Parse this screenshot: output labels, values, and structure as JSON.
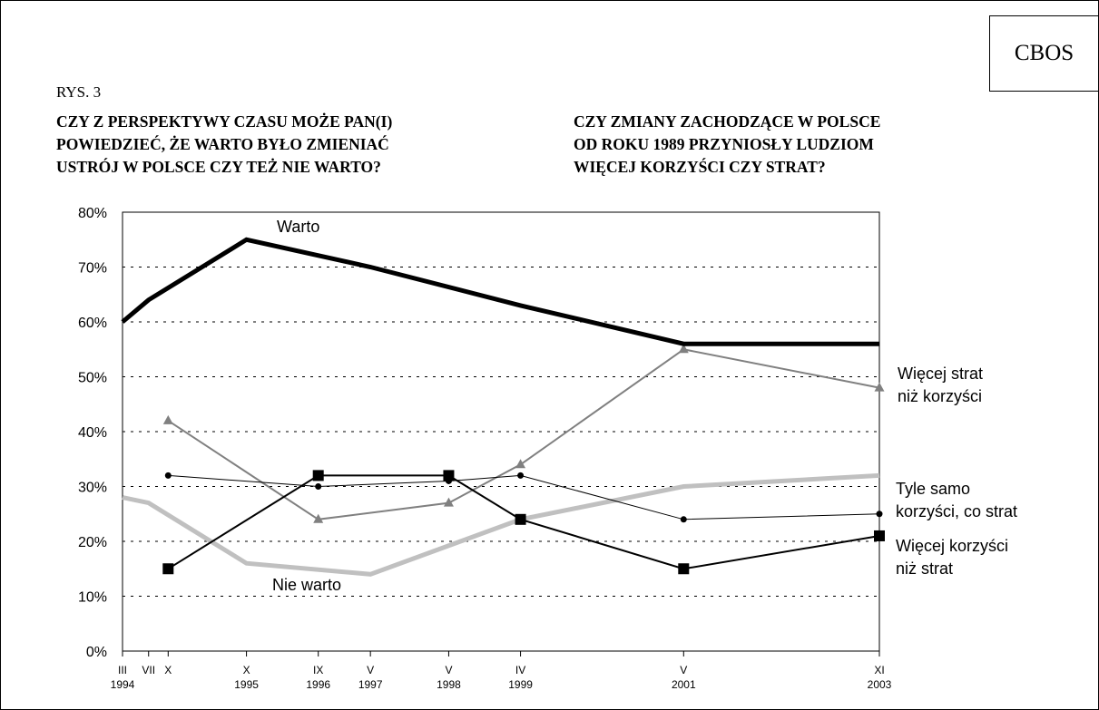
{
  "source": "CBOS",
  "figure_label": "RYS. 3",
  "question_left": "CZY Z PERSPEKTYWY CZASU MOŻE PAN(I)\nPOWIEDZIEĆ, ŻE WARTO BYŁO ZMIENIAĆ\nUSTRÓJ W POLSCE CZY TEŻ NIE WARTO?",
  "question_right": "CZY ZMIANY ZACHODZĄCE W POLSCE\nOD ROKU 1989 PRZYNIOSŁY LUDZIOM\nWIĘCEJ KORZYŚCI CZY STRAT?",
  "colors": {
    "warto": "#000000",
    "nie_warto": "#c0c0c0",
    "wiecej_strat": "#808080",
    "tyle_samo": "#000000",
    "wiecej_korzysci": "#000000"
  },
  "chart_data": {
    "type": "line",
    "ylim": [
      0,
      80
    ],
    "y_ticks": [
      "0%",
      "10%",
      "20%",
      "30%",
      "40%",
      "50%",
      "60%",
      "70%",
      "80%"
    ],
    "y_tick_values": [
      0,
      10,
      20,
      30,
      40,
      50,
      60,
      70,
      80
    ],
    "grid": "horizontal dotted",
    "xlim": [
      1994.167,
      2003.833
    ],
    "x_ticks": [
      {
        "x": 1994.167,
        "month": "III",
        "year": "1994"
      },
      {
        "x": 1994.5,
        "month": "VII",
        "year": ""
      },
      {
        "x": 1994.75,
        "month": "X",
        "year": ""
      },
      {
        "x": 1995.75,
        "month": "X",
        "year": "1995"
      },
      {
        "x": 1996.667,
        "month": "IX",
        "year": "1996"
      },
      {
        "x": 1997.333,
        "month": "V",
        "year": "1997"
      },
      {
        "x": 1998.333,
        "month": "V",
        "year": "1998"
      },
      {
        "x": 1999.25,
        "month": "IV",
        "year": "1999"
      },
      {
        "x": 2001.333,
        "month": "V",
        "year": "2001"
      },
      {
        "x": 2003.833,
        "month": "XI",
        "year": "2003"
      }
    ],
    "series": [
      {
        "key": "warto",
        "name": "Warto",
        "style": "thick-black",
        "points": [
          [
            1994.167,
            60
          ],
          [
            1994.5,
            64
          ],
          [
            1995.75,
            75
          ],
          [
            1997.333,
            70
          ],
          [
            1999.25,
            63
          ],
          [
            2001.333,
            56
          ],
          [
            2003.833,
            56
          ]
        ]
      },
      {
        "key": "nie_warto",
        "name": "Nie warto",
        "style": "thick-lightgray",
        "points": [
          [
            1994.167,
            28
          ],
          [
            1994.5,
            27
          ],
          [
            1995.75,
            16
          ],
          [
            1997.333,
            14
          ],
          [
            1999.25,
            24
          ],
          [
            2001.333,
            30
          ],
          [
            2003.833,
            32
          ]
        ]
      },
      {
        "key": "wiecej_strat",
        "name": "Więcej strat\nniż korzyści",
        "style": "gray-triangle",
        "points": [
          [
            1994.75,
            42
          ],
          [
            1996.667,
            24
          ],
          [
            1998.333,
            27
          ],
          [
            1999.25,
            34
          ],
          [
            2001.333,
            55
          ],
          [
            2003.833,
            48
          ]
        ]
      },
      {
        "key": "tyle_samo",
        "name": "Tyle samo\nkorzyści, co strat",
        "style": "thin-black-circle",
        "points": [
          [
            1994.75,
            32
          ],
          [
            1996.667,
            30
          ],
          [
            1998.333,
            31
          ],
          [
            1999.25,
            32
          ],
          [
            2001.333,
            24
          ],
          [
            2003.833,
            25
          ]
        ]
      },
      {
        "key": "wiecej_korzysci",
        "name": "Więcej korzyści\nniż strat",
        "style": "black-square",
        "points": [
          [
            1994.75,
            15
          ],
          [
            1996.667,
            32
          ],
          [
            1998.333,
            32
          ],
          [
            1999.25,
            24
          ],
          [
            2001.333,
            15
          ],
          [
            2003.833,
            21
          ]
        ]
      }
    ]
  }
}
